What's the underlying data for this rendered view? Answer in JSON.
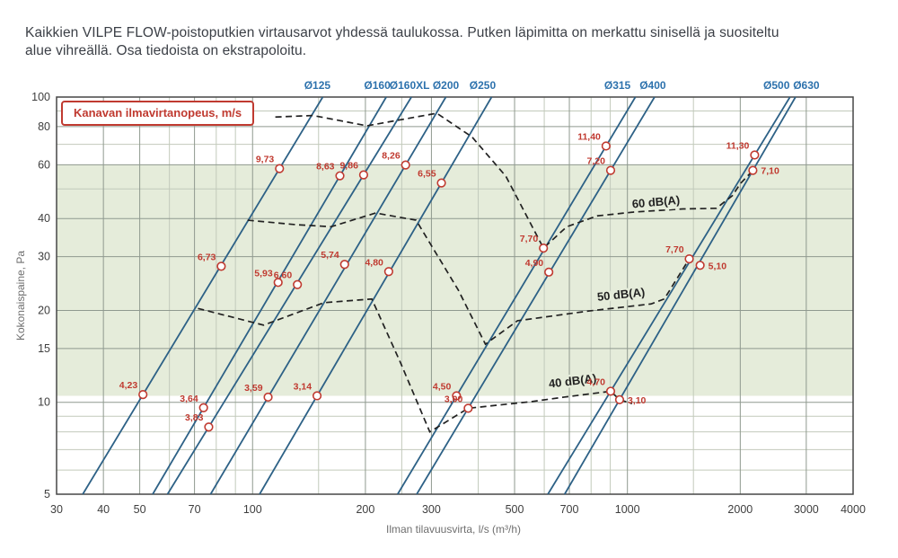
{
  "page": {
    "title_lines": [
      "Kaikkien VILPE FLOW-poistoputkien virtausarvot yhdessä taulukossa. Putken läpimitta on merkattu sinisellä ja suositeltu",
      "alue vihreällä. Osa tiedoista on ekstrapoloitu."
    ]
  },
  "chart_data": {
    "type": "line",
    "scale": "log-log",
    "title": "Kaikkien VILPE FLOW-poistoputkien virtausarvot yhdessä taulukossa",
    "legend": "Kanavan ilmavirtanopeus, m/s",
    "xlabel": "Ilman tilavuusvirta, l/s (m³/h)",
    "ylabel": "Kokonaispaine, Pa",
    "x_range": [
      30,
      4000
    ],
    "y_range": [
      5,
      100
    ],
    "x_ticks": [
      30,
      40,
      50,
      70,
      100,
      200,
      300,
      500,
      700,
      1000,
      2000,
      3000,
      4000
    ],
    "y_ticks": [
      100,
      80,
      60,
      40,
      30,
      20,
      15,
      10,
      5
    ],
    "x_minor": [
      60,
      80,
      90,
      150,
      250,
      400,
      600,
      800,
      900,
      1500
    ],
    "y_minor": [
      90,
      70,
      50,
      9,
      8,
      7,
      6
    ],
    "grid": true,
    "legend_position": "top-left",
    "recommended_area": {
      "p_min": 10.5,
      "p_max": 60
    },
    "colors": {
      "blue_line": "#2d6186",
      "blue_label": "#2d72ad",
      "red": "#c03a30",
      "green": "#e5ecda",
      "grid_major": "#8f998f",
      "grid_minor": "#c2cabb",
      "border": "#474747",
      "dash": "#212121",
      "tick": "#3e3e3e"
    },
    "pipes": [
      {
        "label": "Ø125",
        "label_dx": -6,
        "points": [
          {
            "q": 51,
            "p": 10.6,
            "v": "4,23"
          },
          {
            "q": 82.5,
            "p": 27.9,
            "v": "6,73"
          },
          {
            "q": 118,
            "p": 58.3,
            "v": "9,73"
          }
        ]
      },
      {
        "label": "Ø160",
        "label_dx": -10,
        "points": [
          {
            "q": 74,
            "p": 9.6,
            "v": "3,64"
          },
          {
            "q": 117,
            "p": 24.7,
            "v": "5,93"
          },
          {
            "q": 171,
            "p": 55.2,
            "v": "8,63"
          }
        ]
      },
      {
        "label": "Ø160XL",
        "label_dx": -2,
        "points": [
          {
            "q": 76.4,
            "p": 8.3,
            "v": "3,83"
          },
          {
            "q": 131.7,
            "p": 24.3,
            "v": "6,60"
          },
          {
            "q": 197.8,
            "p": 55.6,
            "v": "9,86"
          }
        ]
      },
      {
        "label": "Ø200",
        "label_dx": 0,
        "points": [
          {
            "q": 110,
            "p": 10.4,
            "v": "3,59"
          },
          {
            "q": 176,
            "p": 28.3,
            "v": "5,74"
          },
          {
            "q": 256,
            "p": 59.9,
            "v": "8,26"
          }
        ]
      },
      {
        "label": "Ø250",
        "label_dx": -10,
        "points": [
          {
            "q": 148.6,
            "p": 10.5,
            "v": "3,14"
          },
          {
            "q": 230.8,
            "p": 26.8,
            "v": "4,80"
          },
          {
            "q": 319,
            "p": 52.3,
            "v": "6,55"
          }
        ]
      },
      {
        "label": "Ø315",
        "label_dx": -20,
        "points": [
          {
            "q": 350,
            "p": 10.5,
            "v": "4,50"
          },
          {
            "q": 597,
            "p": 32.0,
            "v": "7,70"
          },
          {
            "q": 877,
            "p": 69.1,
            "v": "11,40"
          }
        ]
      },
      {
        "label": "Ø400",
        "label_dx": -2,
        "points": [
          {
            "q": 376,
            "p": 9.56,
            "v": "3,00"
          },
          {
            "q": 617,
            "p": 26.7,
            "v": "4,90"
          },
          {
            "q": 902,
            "p": 57.5,
            "v": "7,20"
          }
        ]
      },
      {
        "label": "Ø500",
        "label_dx": -15,
        "points": [
          {
            "q": 902,
            "p": 10.87,
            "v": "4,70"
          },
          {
            "q": 1462,
            "p": 29.5,
            "v": "7,70"
          },
          {
            "q": 2185,
            "p": 64.6,
            "v": "11,30"
          }
        ]
      },
      {
        "label": "Ø630",
        "label_dx": 12,
        "points": [
          {
            "q": 953,
            "p": 10.2,
            "v": "3,10",
            "side": "r"
          },
          {
            "q": 1563,
            "p": 28.1,
            "v": "5,10",
            "side": "r"
          },
          {
            "q": 2161,
            "p": 57.5,
            "v": "7,10",
            "side": "r"
          }
        ]
      }
    ],
    "db_curves": [
      {
        "label": "40 dB(A)",
        "label_pos": [
          716,
          11.4
        ],
        "label_rot": -7,
        "points": [
          [
            71.5,
            20.3
          ],
          [
            107,
            17.9
          ],
          [
            155,
            21.2
          ],
          [
            208,
            21.8
          ],
          [
            248,
            13.5
          ],
          [
            297,
            8.0
          ],
          [
            376,
            9.56
          ],
          [
            553,
            10.05
          ],
          [
            678,
            10.4
          ],
          [
            902,
            10.87
          ],
          [
            953,
            10.2
          ],
          [
            1029,
            9.9
          ]
        ]
      },
      {
        "label": "50 dB(A)",
        "label_pos": [
          964,
          21.9
        ],
        "label_rot": -6,
        "points": [
          [
            97,
            39.5
          ],
          [
            130,
            38.2
          ],
          [
            162,
            37.6
          ],
          [
            213,
            41.7
          ],
          [
            273,
            39.5
          ],
          [
            354,
            23.3
          ],
          [
            418,
            15.5
          ],
          [
            509,
            18.5
          ],
          [
            786,
            19.9
          ],
          [
            1156,
            21.0
          ],
          [
            1254,
            21.8
          ],
          [
            1462,
            29.5
          ],
          [
            1563,
            28.1
          ]
        ]
      },
      {
        "label": "60 dB(A)",
        "label_pos": [
          1194,
          44.0
        ],
        "label_rot": -5,
        "points": [
          [
            115,
            86
          ],
          [
            145,
            87
          ],
          [
            202,
            80.5
          ],
          [
            310,
            88.5
          ],
          [
            385,
            74
          ],
          [
            474,
            55
          ],
          [
            597,
            32
          ],
          [
            689,
            37.6
          ],
          [
            830,
            40.8
          ],
          [
            1040,
            42
          ],
          [
            1408,
            43
          ],
          [
            1726,
            43.2
          ],
          [
            1905,
            47.5
          ],
          [
            2000,
            52
          ],
          [
            2161,
            57.5
          ]
        ]
      }
    ]
  }
}
